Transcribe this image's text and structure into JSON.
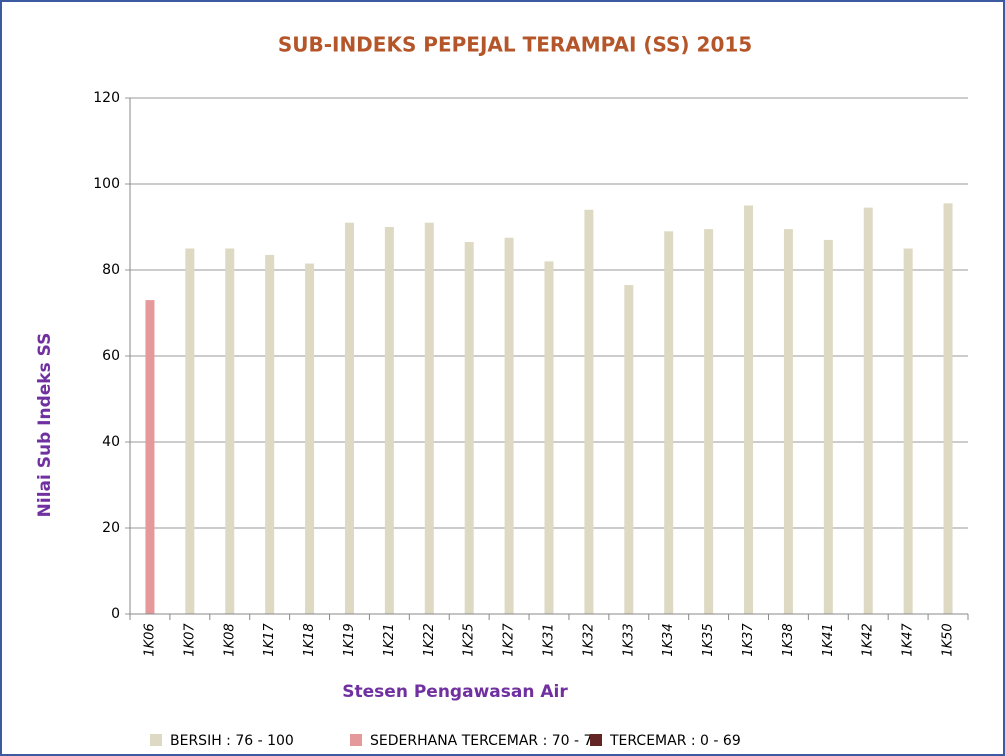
{
  "chart_data": {
    "type": "bar",
    "title": "SUB-INDEKS PEPEJAL TERAMPAI (SS) 2015",
    "y_label": "Nilai Sub Indeks SS",
    "x_label": "Stesen Pengawasan Air",
    "categories": [
      "1K06",
      "1K07",
      "1K08",
      "1K17",
      "1K18",
      "1K19",
      "1K21",
      "1K22",
      "1K25",
      "1K27",
      "1K31",
      "1K32",
      "1K33",
      "1K34",
      "1K35",
      "1K37",
      "1K38",
      "1K41",
      "1K42",
      "1K47",
      "1K50"
    ],
    "series": [
      {
        "name": "BERSIH : 76 - 100",
        "color": "#ddd9c3",
        "values": [
          null,
          85,
          85,
          83.5,
          81.5,
          91,
          90,
          91,
          86.5,
          87.5,
          82,
          94,
          76.5,
          89,
          89.5,
          95,
          89.5,
          87,
          94.5,
          85,
          95.5
        ]
      },
      {
        "name": "SEDERHANA TERCEMAR : 70 - 75",
        "color": "#e6999a",
        "values": [
          73,
          null,
          null,
          null,
          null,
          null,
          null,
          null,
          null,
          null,
          null,
          null,
          null,
          null,
          null,
          null,
          null,
          null,
          null,
          null,
          null
        ]
      },
      {
        "name": "TERCEMAR : 0 - 69",
        "color": "#632523",
        "values": [
          null,
          null,
          null,
          null,
          null,
          null,
          null,
          null,
          null,
          null,
          null,
          null,
          null,
          null,
          null,
          null,
          null,
          null,
          null,
          null,
          null
        ]
      }
    ],
    "ylim": [
      0,
      120
    ],
    "yticks": [
      0,
      20,
      40,
      60,
      80,
      100,
      120
    ],
    "grid": true
  }
}
